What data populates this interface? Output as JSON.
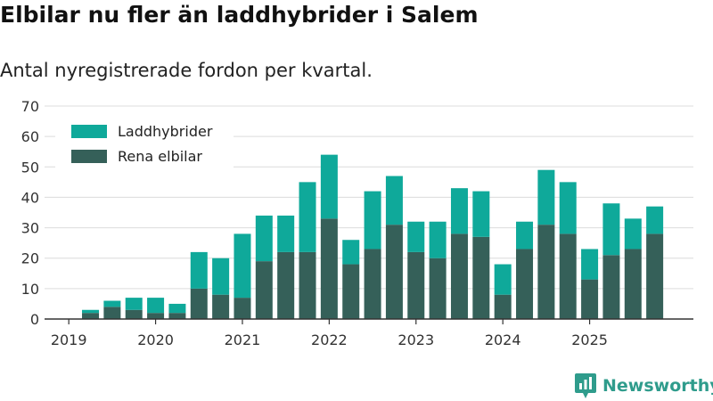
{
  "title": "Elbilar nu fler än laddhybrider i Salem",
  "subtitle": "Antal nyregistrerade fordon per kvartal.",
  "brand": {
    "name": "Newsworthy",
    "color": "#2f9c8c"
  },
  "chart_data": {
    "type": "bar",
    "stacked": true,
    "y_ticks": [
      "0",
      "10",
      "20",
      "30",
      "40",
      "50",
      "60",
      "70"
    ],
    "ylim": [
      0,
      70
    ],
    "x_ticks": [
      "2019",
      "2020",
      "2021",
      "2022",
      "2023",
      "2024",
      "2025"
    ],
    "grid": true,
    "legend_position": "top-left",
    "categories": [
      "2019Q1",
      "2019Q2",
      "2019Q3",
      "2019Q4",
      "2020Q1",
      "2020Q2",
      "2020Q3",
      "2020Q4",
      "2021Q1",
      "2021Q2",
      "2021Q3",
      "2021Q4",
      "2022Q1",
      "2022Q2",
      "2022Q3",
      "2022Q4",
      "2023Q1",
      "2023Q2",
      "2023Q3",
      "2023Q4",
      "2024Q1",
      "2024Q2",
      "2024Q3",
      "2024Q4",
      "2025Q1",
      "2025Q2",
      "2025Q3",
      "2025Q4"
    ],
    "series": [
      {
        "name": "Rena elbilar",
        "color": "#356059",
        "values": [
          0,
          2,
          4,
          3,
          2,
          2,
          10,
          8,
          7,
          19,
          22,
          22,
          33,
          18,
          23,
          31,
          22,
          20,
          28,
          27,
          8,
          23,
          31,
          28,
          13,
          21,
          23,
          28
        ]
      },
      {
        "name": "Laddhybrider",
        "color": "#0fa99a",
        "values": [
          0,
          1,
          2,
          4,
          5,
          3,
          12,
          12,
          21,
          15,
          12,
          23,
          21,
          8,
          19,
          16,
          10,
          12,
          15,
          15,
          10,
          9,
          18,
          17,
          10,
          17,
          10,
          9
        ]
      }
    ],
    "legend": [
      "Laddhybrider",
      "Rena elbilar"
    ]
  }
}
